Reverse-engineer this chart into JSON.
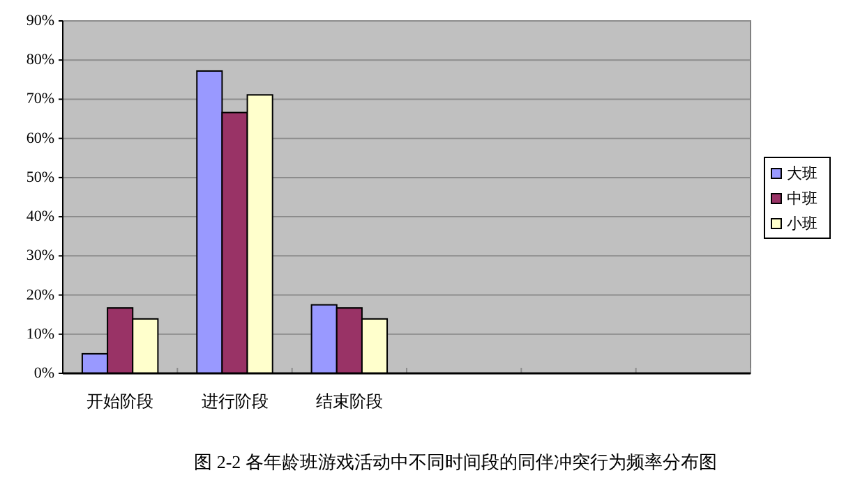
{
  "chart_data": {
    "type": "bar",
    "title": "图 2-2 各年龄班游戏活动中不同时间段的同伴冲突行为频率分布图",
    "categories": [
      "开始阶段",
      "进行阶段",
      "结束阶段",
      null,
      null,
      null
    ],
    "series": [
      {
        "name": "大班",
        "color": "#9999ff",
        "values": [
          5,
          77.2,
          17.5,
          null,
          null,
          null
        ]
      },
      {
        "name": "中班",
        "color": "#993366",
        "values": [
          16.7,
          66.6,
          16.7,
          null,
          null,
          null
        ]
      },
      {
        "name": "小班",
        "color": "#ffffcc",
        "values": [
          13.9,
          71.1,
          13.9,
          null,
          null,
          null
        ]
      }
    ],
    "ylim": [
      0,
      90
    ],
    "yticks": [
      {
        "value": 0,
        "label": "0%"
      },
      {
        "value": 10,
        "label": "10%"
      },
      {
        "value": 20,
        "label": "20%"
      },
      {
        "value": 30,
        "label": "30%"
      },
      {
        "value": 40,
        "label": "40%"
      },
      {
        "value": 50,
        "label": "50%"
      },
      {
        "value": 60,
        "label": "60%"
      },
      {
        "value": 70,
        "label": "70%"
      },
      {
        "value": 80,
        "label": "80%"
      },
      {
        "value": 90,
        "label": "90%"
      }
    ],
    "grid": "y",
    "legend": "right"
  }
}
